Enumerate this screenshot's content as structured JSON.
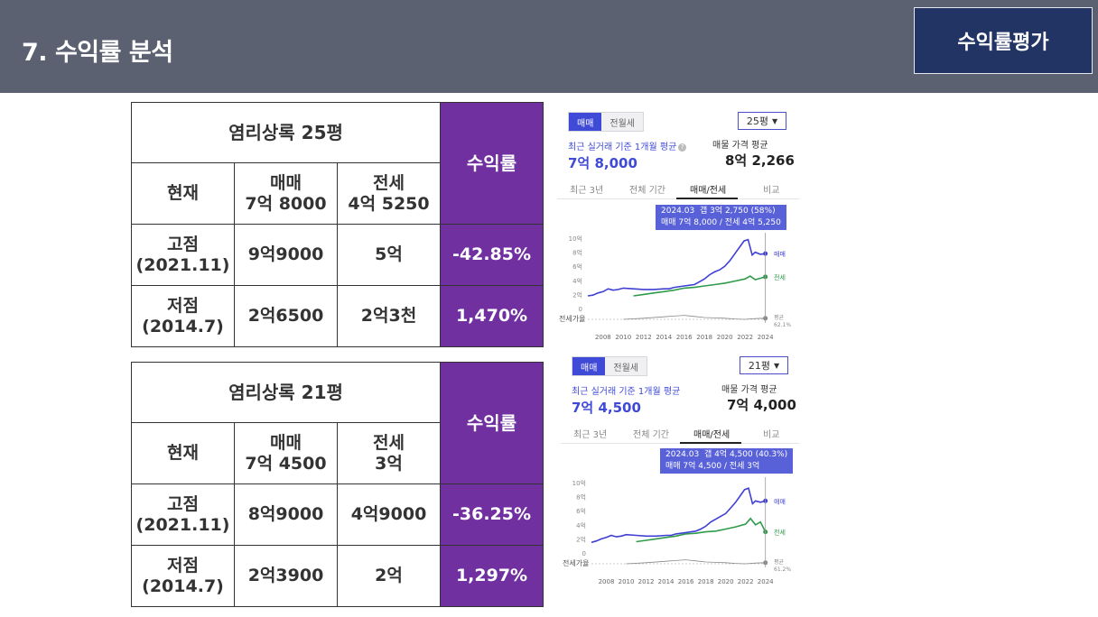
{
  "header": {
    "title": "7. 수익률 분석",
    "badge": "수익률평가"
  },
  "tables": [
    {
      "title": "염리상록 25평",
      "yield_label": "수익률",
      "rows": [
        {
          "label": "현재",
          "sale": "매매\n7억 8000",
          "jeonse": "전세\n4억 5250",
          "yield": ""
        },
        {
          "label": "고점\n(2021.11)",
          "sale": "9억9000",
          "jeonse": "5억",
          "yield": "-42.85%"
        },
        {
          "label": "저점\n(2014.7)",
          "sale": "2억6500",
          "jeonse": "2억3천",
          "yield": "1,470%"
        }
      ]
    },
    {
      "title": "염리상록 21평",
      "yield_label": "수익률",
      "rows": [
        {
          "label": "현재",
          "sale": "매매\n7억 4500",
          "jeonse": "전세\n3억",
          "yield": ""
        },
        {
          "label": "고점\n(2021.11)",
          "sale": "8억9000",
          "jeonse": "4억9000",
          "yield": "-36.25%"
        },
        {
          "label": "저점\n(2014.7)",
          "sale": "2억3900",
          "jeonse": "2억",
          "yield": "1,297%"
        }
      ]
    }
  ],
  "panels": [
    {
      "tab_active": "매매",
      "tab_inactive": "전월세",
      "size": "25평",
      "avg_label": "최근 실거래 기준 1개월 평균",
      "avg_value": "7억 8,000",
      "ask_label": "매물 가격 평균",
      "ask_value": "8억 2,266",
      "tabs": [
        "최근 3년",
        "전체 기간",
        "매매/전세",
        "비교"
      ],
      "tooltip": [
        "2024.03  갭 3억 2,750 (58%)",
        "매매 7억 8,000 / 전세 4억 5,250"
      ],
      "right_labels": {
        "sale": "매매",
        "jeonse": "전세",
        "avg": "평균",
        "avg_pct": "62.1%"
      },
      "ratio_label": "전세가율"
    },
    {
      "tab_active": "매매",
      "tab_inactive": "전월세",
      "size": "21평",
      "avg_label": "최근 실거래 기준 1개월 평균",
      "avg_value": "7억 4,500",
      "ask_label": "매물 가격 평균",
      "ask_value": "7억 4,000",
      "tabs": [
        "최근 3년",
        "전체 기간",
        "매매/전세",
        "비교"
      ],
      "tooltip": [
        "2024.03  갭 4억 4,500 (40.3%)",
        "매매 7억 4,500 / 전세 3억"
      ],
      "right_labels": {
        "sale": "매매",
        "jeonse": "전세",
        "avg": "평균",
        "avg_pct": "61.2%"
      },
      "ratio_label": "전세가율"
    }
  ],
  "chart_data": [
    {
      "type": "line",
      "x_ticks": [
        "2008",
        "2010",
        "2012",
        "2014",
        "2016",
        "2018",
        "2020",
        "2022",
        "2024"
      ],
      "y_ticks": [
        "10억",
        "8억",
        "6억",
        "4억",
        "2억",
        "0"
      ],
      "ylim": [
        0,
        10
      ],
      "series": [
        {
          "name": "매매",
          "color": "#3f3fd4",
          "x": [
            2006.5,
            2007,
            2007.5,
            2008,
            2008.5,
            2009,
            2009.5,
            2010,
            2011,
            2012,
            2013,
            2014,
            2014.5,
            2015,
            2016,
            2017,
            2017.5,
            2018,
            2018.5,
            2019,
            2019.5,
            2020,
            2020.5,
            2021,
            2021.5,
            2021.9,
            2022.3,
            2022.7,
            2023,
            2023.5,
            2024
          ],
          "y": [
            1.8,
            1.9,
            2.2,
            2.4,
            2.8,
            2.6,
            2.7,
            2.9,
            2.8,
            2.7,
            2.7,
            2.8,
            2.8,
            3.0,
            3.2,
            3.4,
            3.8,
            4.2,
            4.8,
            5.2,
            5.5,
            6.0,
            6.8,
            7.8,
            8.8,
            9.6,
            9.8,
            7.6,
            8.0,
            7.7,
            7.8
          ]
        },
        {
          "name": "전세",
          "color": "#2f9a4a",
          "x": [
            2011,
            2012,
            2013,
            2014,
            2015,
            2016,
            2017,
            2018,
            2019,
            2020,
            2021,
            2022,
            2022.5,
            2023,
            2023.5,
            2024
          ],
          "y": [
            1.8,
            2.0,
            2.2,
            2.4,
            2.6,
            2.9,
            3.0,
            3.2,
            3.4,
            3.6,
            3.9,
            4.2,
            4.6,
            4.1,
            4.3,
            4.5
          ]
        },
        {
          "name": "전세가율",
          "color": "#888888",
          "x": [
            2010,
            2012,
            2014,
            2015,
            2016,
            2017,
            2018,
            2019,
            2020,
            2021,
            2022,
            2023,
            2024
          ],
          "y": [
            0,
            0.3,
            0.7,
            0.9,
            1.1,
            0.8,
            0.5,
            0.4,
            0.3,
            0.1,
            0.0,
            0.2,
            0.3
          ]
        }
      ]
    },
    {
      "type": "line",
      "x_ticks": [
        "2008",
        "2010",
        "2012",
        "2014",
        "2016",
        "2018",
        "2020",
        "2022",
        "2024"
      ],
      "y_ticks": [
        "10억",
        "8억",
        "6억",
        "4억",
        "2억",
        "0"
      ],
      "ylim": [
        0,
        10
      ],
      "series": [
        {
          "name": "매매",
          "color": "#3f3fd4",
          "x": [
            2006.5,
            2007,
            2007.5,
            2008,
            2008.5,
            2009,
            2009.5,
            2010,
            2011,
            2012,
            2013,
            2014,
            2014.5,
            2015,
            2016,
            2017,
            2017.5,
            2018,
            2018.5,
            2019,
            2019.5,
            2020,
            2020.5,
            2021,
            2021.5,
            2021.9,
            2022.3,
            2022.7,
            2023,
            2023.5,
            2024
          ],
          "y": [
            1.5,
            1.7,
            2.0,
            2.2,
            2.5,
            2.3,
            2.4,
            2.6,
            2.5,
            2.4,
            2.4,
            2.5,
            2.5,
            2.7,
            2.9,
            3.1,
            3.4,
            3.8,
            4.4,
            4.8,
            5.2,
            5.6,
            6.4,
            7.2,
            8.2,
            9.0,
            9.2,
            7.0,
            7.4,
            7.2,
            7.4
          ]
        },
        {
          "name": "전세",
          "color": "#2f9a4a",
          "x": [
            2011,
            2012,
            2013,
            2014,
            2015,
            2016,
            2017,
            2018,
            2019,
            2020,
            2021,
            2022,
            2022.5,
            2023,
            2023.5,
            2024
          ],
          "y": [
            1.6,
            1.8,
            2.0,
            2.2,
            2.4,
            2.7,
            2.8,
            3.0,
            3.1,
            3.4,
            3.7,
            4.1,
            4.9,
            4.0,
            4.4,
            3.0
          ]
        },
        {
          "name": "전세가율",
          "color": "#888888",
          "x": [
            2010,
            2012,
            2014,
            2015,
            2016,
            2017,
            2018,
            2019,
            2020,
            2021,
            2022,
            2023,
            2024
          ],
          "y": [
            0,
            0.3,
            0.7,
            0.9,
            1.1,
            0.8,
            0.5,
            0.4,
            0.3,
            0.1,
            0.0,
            0.2,
            0.3
          ]
        }
      ]
    }
  ]
}
